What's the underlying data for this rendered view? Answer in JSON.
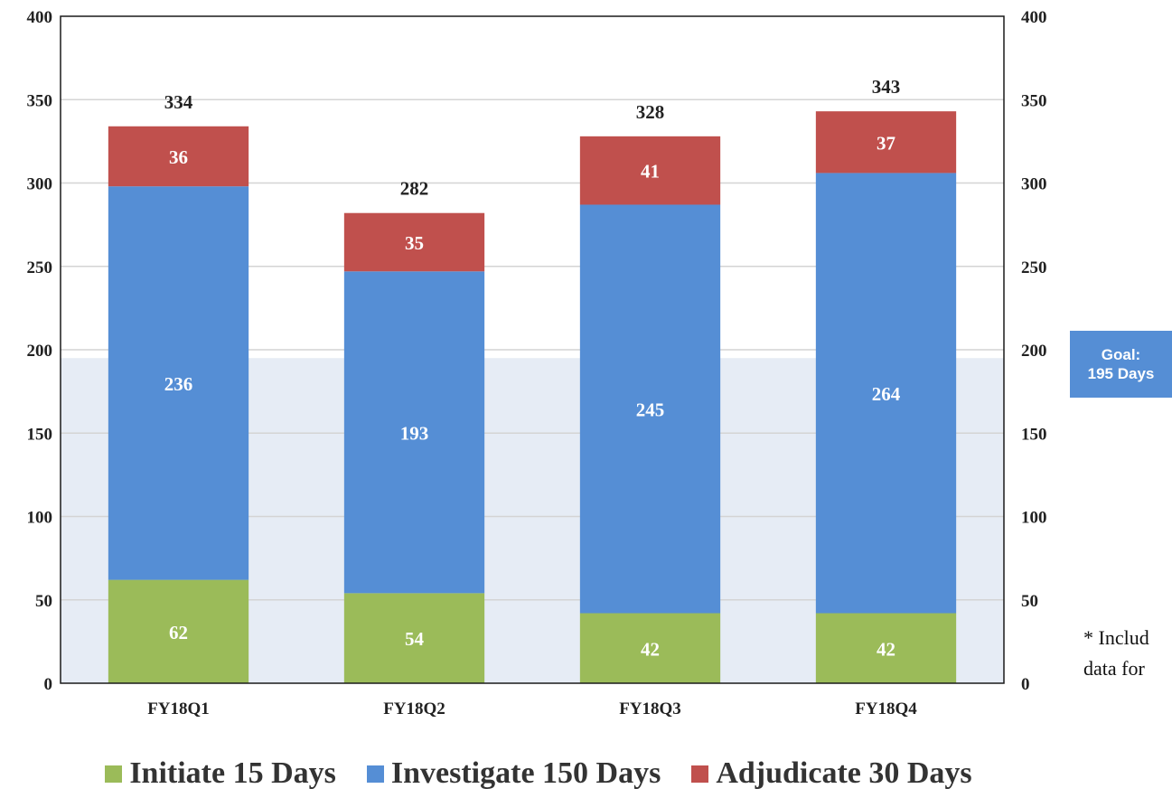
{
  "chart_data": {
    "type": "bar",
    "stacked": true,
    "categories": [
      "FY18Q1",
      "FY18Q2",
      "FY18Q3",
      "FY18Q4"
    ],
    "series": [
      {
        "name": "Initiate 15 Days",
        "color": "#9BBB59",
        "values": [
          62,
          54,
          42,
          42
        ]
      },
      {
        "name": "Investigate 150 Days",
        "color": "#558ED5",
        "values": [
          236,
          193,
          245,
          264
        ]
      },
      {
        "name": "Adjudicate 30 Days",
        "color": "#C0504D",
        "values": [
          36,
          35,
          41,
          37
        ]
      }
    ],
    "totals": [
      334,
      282,
      328,
      343
    ],
    "ylim": [
      0,
      400
    ],
    "yticks": [
      "0",
      "50",
      "100",
      "150",
      "200",
      "250",
      "300",
      "350",
      "400"
    ],
    "secondary_yticks": [
      "0",
      "50",
      "100",
      "150",
      "200",
      "250",
      "300",
      "350",
      "400"
    ],
    "goal": {
      "value": 195,
      "fill": "#E6ECF5"
    },
    "grid": true,
    "legend_position": "bottom"
  },
  "goal_label": {
    "line1": "Goal:",
    "line2": "195 Days",
    "color": "#558ED5"
  },
  "footnote": {
    "line1": "* Includ",
    "line2": "data for"
  },
  "legend": [
    {
      "label": "Initiate 15 Days",
      "color": "#9BBB59"
    },
    {
      "label": "Investigate 150 Days",
      "color": "#558ED5"
    },
    {
      "label": "Adjudicate 30 Days",
      "color": "#C0504D"
    }
  ]
}
